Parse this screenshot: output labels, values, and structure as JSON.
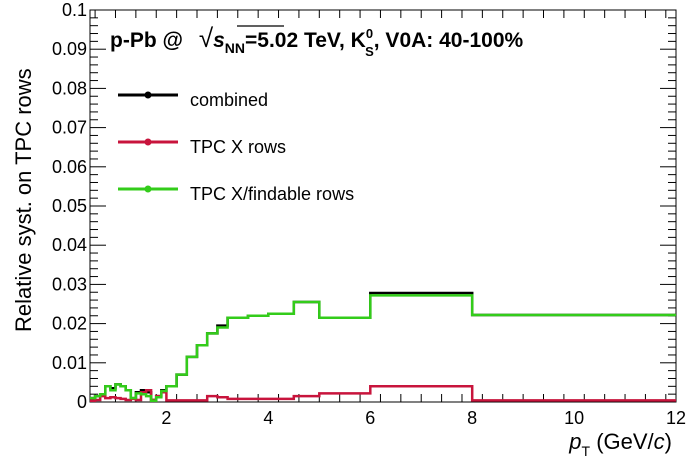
{
  "chart_data": {
    "type": "line",
    "title": {
      "prefix": "p-Pb @ ",
      "sqrt": "√",
      "s": "s",
      "nn": "NN",
      "energy": "=5.02 TeV, K",
      "particle_sup": "0",
      "particle_sub": "S",
      "suffix": ", V0A: 40-100%"
    },
    "xlabel": {
      "p": "p",
      "sub": "T",
      "unit_open": " (GeV/",
      "c": "c",
      "unit_close": ")"
    },
    "ylabel": "Relative syst. on TPC rows",
    "xlim": [
      0.5,
      12
    ],
    "ylim": [
      0,
      0.1
    ],
    "x_ticks": [
      "2",
      "4",
      "6",
      "8",
      "10",
      "12"
    ],
    "y_ticks": [
      "0",
      "0.01",
      "0.02",
      "0.03",
      "0.04",
      "0.05",
      "0.06",
      "0.07",
      "0.08",
      "0.09",
      "0.1"
    ],
    "legend_position": "top-left",
    "bin_edges": [
      0.5,
      0.6,
      0.7,
      0.8,
      0.9,
      1.0,
      1.1,
      1.2,
      1.3,
      1.4,
      1.5,
      1.6,
      1.7,
      1.8,
      1.9,
      2.0,
      2.2,
      2.4,
      2.6,
      2.8,
      3.0,
      3.2,
      3.6,
      4.0,
      4.5,
      5.0,
      6.0,
      8.0,
      12.0
    ],
    "series": [
      {
        "name": "combined",
        "color": "#000000",
        "values": [
          0.001,
          0.0015,
          0.002,
          0.004,
          0.0035,
          0.0045,
          0.004,
          0.003,
          0.001,
          0.0025,
          0.003,
          0.0025,
          0.0005,
          0.0015,
          0.003,
          0.004,
          0.007,
          0.0115,
          0.0145,
          0.0175,
          0.0195,
          0.0215,
          0.022,
          0.0225,
          0.0255,
          0.0215,
          0.0278,
          0.0222
        ]
      },
      {
        "name": "TPC X rows",
        "color": "#c8143c",
        "values": [
          0.0003,
          0.0005,
          0.0015,
          0.001,
          0.0012,
          0.001,
          0.0008,
          0.0005,
          0.0008,
          0.0005,
          0.0025,
          0.003,
          0.0005,
          0.0015,
          0.0025,
          0.0004,
          0.0004,
          0.0004,
          0.0004,
          0.0015,
          0.0012,
          0.0008,
          0.0008,
          0.0008,
          0.0015,
          0.0022,
          0.004,
          0.0004
        ]
      },
      {
        "name": "TPC X/findable rows",
        "color": "#33cc1a",
        "values": [
          0.001,
          0.0015,
          0.002,
          0.004,
          0.003,
          0.0045,
          0.004,
          0.003,
          0.001,
          0.0022,
          0.002,
          0.0015,
          0.0003,
          0.0012,
          0.0028,
          0.004,
          0.007,
          0.0115,
          0.0145,
          0.0175,
          0.019,
          0.0215,
          0.022,
          0.0225,
          0.0255,
          0.0215,
          0.0272,
          0.0222
        ]
      }
    ]
  }
}
